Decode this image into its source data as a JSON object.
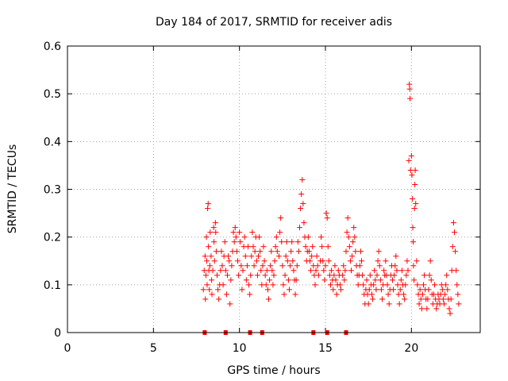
{
  "chart_data": {
    "type": "scatter",
    "title": "Day 184 of 2017, SRMTID for receiver adis",
    "xlabel": "GPS time / hours",
    "ylabel": "SRMTID / TECUs",
    "xlim": [
      0,
      24
    ],
    "ylim": [
      0,
      0.6
    ],
    "xticks": [
      0,
      5,
      10,
      15,
      20
    ],
    "yticks": [
      0,
      0.1,
      0.2,
      0.3,
      0.4,
      0.5,
      0.6
    ],
    "xtick_labels": [
      "0",
      "5",
      "10",
      "15",
      "20"
    ],
    "ytick_labels": [
      "0",
      "0.1",
      "0.2",
      "0.3",
      "0.4",
      "0.5",
      "0.6"
    ],
    "grid": true,
    "marker": "plus",
    "series": [
      {
        "name": "SRMTID",
        "color": "#ff0000",
        "points": [
          [
            7.9,
            0.09
          ],
          [
            7.95,
            0.13
          ],
          [
            8.0,
            0.16
          ],
          [
            8.02,
            0.07
          ],
          [
            8.05,
            0.12
          ],
          [
            8.08,
            0.2
          ],
          [
            8.1,
            0.15
          ],
          [
            8.12,
            0.1
          ],
          [
            8.15,
            0.26
          ],
          [
            8.18,
            0.27
          ],
          [
            8.2,
            0.18
          ],
          [
            8.22,
            0.13
          ],
          [
            8.25,
            0.09
          ],
          [
            8.28,
            0.14
          ],
          [
            8.3,
            0.21
          ],
          [
            8.35,
            0.16
          ],
          [
            8.38,
            0.11
          ],
          [
            8.4,
            0.08
          ],
          [
            8.45,
            0.13
          ],
          [
            8.5,
            0.22
          ],
          [
            8.52,
            0.19
          ],
          [
            8.55,
            0.15
          ],
          [
            8.6,
            0.23
          ],
          [
            8.62,
            0.21
          ],
          [
            8.65,
            0.17
          ],
          [
            8.7,
            0.12
          ],
          [
            8.75,
            0.09
          ],
          [
            8.8,
            0.07
          ],
          [
            8.85,
            0.1
          ],
          [
            8.9,
            0.13
          ],
          [
            8.95,
            0.17
          ],
          [
            9.0,
            0.14
          ],
          [
            9.05,
            0.1
          ],
          [
            9.1,
            0.16
          ],
          [
            9.15,
            0.19
          ],
          [
            9.2,
            0.13
          ],
          [
            9.25,
            0.08
          ],
          [
            9.3,
            0.12
          ],
          [
            9.35,
            0.16
          ],
          [
            9.4,
            0.15
          ],
          [
            9.45,
            0.06
          ],
          [
            9.5,
            0.11
          ],
          [
            9.55,
            0.14
          ],
          [
            9.6,
            0.17
          ],
          [
            9.65,
            0.21
          ],
          [
            9.7,
            0.19
          ],
          [
            9.75,
            0.22
          ],
          [
            9.8,
            0.2
          ],
          [
            9.85,
            0.17
          ],
          [
            9.9,
            0.15
          ],
          [
            9.95,
            0.12
          ],
          [
            10.0,
            0.21
          ],
          [
            10.05,
            0.19
          ],
          [
            10.1,
            0.14
          ],
          [
            10.15,
            0.09
          ],
          [
            10.2,
            0.13
          ],
          [
            10.25,
            0.18
          ],
          [
            10.3,
            0.2
          ],
          [
            10.35,
            0.16
          ],
          [
            10.4,
            0.11
          ],
          [
            10.45,
            0.14
          ],
          [
            10.5,
            0.18
          ],
          [
            10.55,
            0.1
          ],
          [
            10.6,
            0.08
          ],
          [
            10.65,
            0.12
          ],
          [
            10.7,
            0.16
          ],
          [
            10.75,
            0.21
          ],
          [
            10.8,
            0.18
          ],
          [
            10.85,
            0.14
          ],
          [
            10.9,
            0.17
          ],
          [
            10.95,
            0.2
          ],
          [
            11.0,
            0.15
          ],
          [
            11.05,
            0.12
          ],
          [
            11.1,
            0.16
          ],
          [
            11.15,
            0.2
          ],
          [
            11.2,
            0.17
          ],
          [
            11.25,
            0.13
          ],
          [
            11.3,
            0.1
          ],
          [
            11.35,
            0.14
          ],
          [
            11.4,
            0.18
          ],
          [
            11.45,
            0.15
          ],
          [
            11.5,
            0.12
          ],
          [
            11.55,
            0.1
          ],
          [
            11.6,
            0.13
          ],
          [
            11.65,
            0.09
          ],
          [
            11.7,
            0.07
          ],
          [
            11.75,
            0.11
          ],
          [
            11.8,
            0.14
          ],
          [
            11.85,
            0.17
          ],
          [
            11.9,
            0.13
          ],
          [
            11.95,
            0.1
          ],
          [
            12.0,
            0.12
          ],
          [
            12.05,
            0.15
          ],
          [
            12.1,
            0.18
          ],
          [
            12.15,
            0.2
          ],
          [
            12.2,
            0.17
          ],
          [
            12.3,
            0.16
          ],
          [
            12.35,
            0.21
          ],
          [
            12.4,
            0.24
          ],
          [
            12.45,
            0.19
          ],
          [
            12.5,
            0.14
          ],
          [
            12.55,
            0.1
          ],
          [
            12.6,
            0.08
          ],
          [
            12.65,
            0.12
          ],
          [
            12.7,
            0.16
          ],
          [
            12.75,
            0.19
          ],
          [
            12.8,
            0.15
          ],
          [
            12.85,
            0.11
          ],
          [
            12.9,
            0.09
          ],
          [
            12.95,
            0.14
          ],
          [
            13.0,
            0.17
          ],
          [
            13.05,
            0.19
          ],
          [
            13.1,
            0.15
          ],
          [
            13.15,
            0.13
          ],
          [
            13.2,
            0.11
          ],
          [
            13.25,
            0.08
          ],
          [
            13.3,
            0.11
          ],
          [
            13.35,
            0.14
          ],
          [
            13.4,
            0.19
          ],
          [
            13.45,
            0.17
          ],
          [
            13.5,
            0.22
          ],
          [
            13.55,
            0.26
          ],
          [
            13.6,
            0.29
          ],
          [
            13.65,
            0.32
          ],
          [
            13.7,
            0.27
          ],
          [
            13.75,
            0.23
          ],
          [
            13.8,
            0.2
          ],
          [
            13.85,
            0.18
          ],
          [
            13.9,
            0.15
          ],
          [
            13.95,
            0.17
          ],
          [
            14.0,
            0.2
          ],
          [
            14.05,
            0.17
          ],
          [
            14.1,
            0.15
          ],
          [
            14.15,
            0.13
          ],
          [
            14.2,
            0.16
          ],
          [
            14.25,
            0.18
          ],
          [
            14.3,
            0.14
          ],
          [
            14.35,
            0.12
          ],
          [
            14.4,
            0.1
          ],
          [
            14.45,
            0.13
          ],
          [
            14.5,
            0.16
          ],
          [
            14.55,
            0.14
          ],
          [
            14.6,
            0.12
          ],
          [
            14.7,
            0.15
          ],
          [
            14.75,
            0.2
          ],
          [
            14.8,
            0.18
          ],
          [
            14.85,
            0.15
          ],
          [
            14.9,
            0.13
          ],
          [
            14.95,
            0.11
          ],
          [
            15.0,
            0.14
          ],
          [
            15.05,
            0.25
          ],
          [
            15.1,
            0.24
          ],
          [
            15.15,
            0.18
          ],
          [
            15.2,
            0.15
          ],
          [
            15.25,
            0.12
          ],
          [
            15.3,
            0.1
          ],
          [
            15.35,
            0.13
          ],
          [
            15.4,
            0.11
          ],
          [
            15.45,
            0.09
          ],
          [
            15.5,
            0.12
          ],
          [
            15.55,
            0.14
          ],
          [
            15.6,
            0.11
          ],
          [
            15.65,
            0.08
          ],
          [
            15.7,
            0.1
          ],
          [
            15.75,
            0.13
          ],
          [
            15.8,
            0.12
          ],
          [
            15.85,
            0.1
          ],
          [
            15.9,
            0.09
          ],
          [
            16.0,
            0.12
          ],
          [
            16.05,
            0.14
          ],
          [
            16.1,
            0.11
          ],
          [
            16.15,
            0.13
          ],
          [
            16.2,
            0.17
          ],
          [
            16.25,
            0.21
          ],
          [
            16.3,
            0.24
          ],
          [
            16.35,
            0.2
          ],
          [
            16.4,
            0.18
          ],
          [
            16.45,
            0.15
          ],
          [
            16.5,
            0.13
          ],
          [
            16.55,
            0.16
          ],
          [
            16.6,
            0.19
          ],
          [
            16.65,
            0.22
          ],
          [
            16.7,
            0.2
          ],
          [
            16.75,
            0.17
          ],
          [
            16.8,
            0.14
          ],
          [
            16.85,
            0.12
          ],
          [
            16.9,
            0.1
          ],
          [
            16.95,
            0.12
          ],
          [
            17.0,
            0.14
          ],
          [
            17.05,
            0.17
          ],
          [
            17.1,
            0.15
          ],
          [
            17.15,
            0.12
          ],
          [
            17.2,
            0.1
          ],
          [
            17.25,
            0.08
          ],
          [
            17.3,
            0.06
          ],
          [
            17.35,
            0.09
          ],
          [
            17.4,
            0.11
          ],
          [
            17.45,
            0.08
          ],
          [
            17.5,
            0.06
          ],
          [
            17.55,
            0.09
          ],
          [
            17.6,
            0.12
          ],
          [
            17.65,
            0.1
          ],
          [
            17.7,
            0.08
          ],
          [
            17.75,
            0.07
          ],
          [
            17.8,
            0.1
          ],
          [
            17.85,
            0.13
          ],
          [
            17.9,
            0.11
          ],
          [
            17.95,
            0.09
          ],
          [
            18.0,
            0.12
          ],
          [
            18.05,
            0.15
          ],
          [
            18.1,
            0.17
          ],
          [
            18.15,
            0.14
          ],
          [
            18.2,
            0.11
          ],
          [
            18.25,
            0.09
          ],
          [
            18.3,
            0.07
          ],
          [
            18.35,
            0.1
          ],
          [
            18.4,
            0.13
          ],
          [
            18.45,
            0.12
          ],
          [
            18.5,
            0.15
          ],
          [
            18.55,
            0.12
          ],
          [
            18.6,
            0.1
          ],
          [
            18.65,
            0.08
          ],
          [
            18.7,
            0.06
          ],
          [
            18.75,
            0.09
          ],
          [
            18.8,
            0.12
          ],
          [
            18.85,
            0.14
          ],
          [
            18.9,
            0.11
          ],
          [
            18.95,
            0.09
          ],
          [
            19.0,
            0.12
          ],
          [
            19.05,
            0.14
          ],
          [
            19.1,
            0.16
          ],
          [
            19.15,
            0.13
          ],
          [
            19.2,
            0.1
          ],
          [
            19.25,
            0.08
          ],
          [
            19.3,
            0.06
          ],
          [
            19.35,
            0.09
          ],
          [
            19.4,
            0.11
          ],
          [
            19.45,
            0.13
          ],
          [
            19.5,
            0.1
          ],
          [
            19.55,
            0.08
          ],
          [
            19.6,
            0.07
          ],
          [
            19.65,
            0.1
          ],
          [
            19.7,
            0.12
          ],
          [
            19.75,
            0.15
          ],
          [
            19.8,
            0.13
          ],
          [
            19.85,
            0.36
          ],
          [
            19.88,
            0.52
          ],
          [
            19.9,
            0.51
          ],
          [
            19.92,
            0.49
          ],
          [
            19.95,
            0.34
          ],
          [
            20.0,
            0.37
          ],
          [
            20.03,
            0.33
          ],
          [
            20.05,
            0.28
          ],
          [
            20.08,
            0.22
          ],
          [
            20.1,
            0.19
          ],
          [
            20.12,
            0.14
          ],
          [
            20.15,
            0.11
          ],
          [
            20.18,
            0.26
          ],
          [
            20.2,
            0.31
          ],
          [
            20.22,
            0.34
          ],
          [
            20.25,
            0.27
          ],
          [
            20.3,
            0.15
          ],
          [
            20.35,
            0.1
          ],
          [
            20.4,
            0.08
          ],
          [
            20.45,
            0.06
          ],
          [
            20.5,
            0.09
          ],
          [
            20.55,
            0.07
          ],
          [
            20.6,
            0.05
          ],
          [
            20.65,
            0.08
          ],
          [
            20.7,
            0.1
          ],
          [
            20.75,
            0.12
          ],
          [
            20.8,
            0.09
          ],
          [
            20.85,
            0.07
          ],
          [
            20.9,
            0.05
          ],
          [
            20.95,
            0.07
          ],
          [
            21.0,
            0.09
          ],
          [
            21.05,
            0.12
          ],
          [
            21.1,
            0.15
          ],
          [
            21.15,
            0.11
          ],
          [
            21.2,
            0.08
          ],
          [
            21.25,
            0.06
          ],
          [
            21.3,
            0.08
          ],
          [
            21.35,
            0.1
          ],
          [
            21.4,
            0.07
          ],
          [
            21.45,
            0.05
          ],
          [
            21.5,
            0.06
          ],
          [
            21.55,
            0.08
          ],
          [
            21.6,
            0.07
          ],
          [
            21.65,
            0.06
          ],
          [
            21.7,
            0.08
          ],
          [
            21.75,
            0.1
          ],
          [
            21.8,
            0.09
          ],
          [
            21.85,
            0.07
          ],
          [
            21.9,
            0.06
          ],
          [
            21.95,
            0.08
          ],
          [
            22.0,
            0.1
          ],
          [
            22.05,
            0.12
          ],
          [
            22.1,
            0.09
          ],
          [
            22.15,
            0.07
          ],
          [
            22.2,
            0.05
          ],
          [
            22.25,
            0.04
          ],
          [
            22.3,
            0.07
          ],
          [
            22.35,
            0.13
          ],
          [
            22.4,
            0.18
          ],
          [
            22.45,
            0.23
          ],
          [
            22.5,
            0.21
          ],
          [
            22.55,
            0.17
          ],
          [
            22.6,
            0.13
          ],
          [
            22.65,
            0.1
          ],
          [
            22.7,
            0.08
          ],
          [
            22.75,
            0.06
          ]
        ]
      },
      {
        "name": "data gaps",
        "color": "#ff0000",
        "x": [
          7.98,
          9.2,
          10.62,
          11.32,
          14.3,
          15.1,
          16.2
        ]
      }
    ]
  }
}
